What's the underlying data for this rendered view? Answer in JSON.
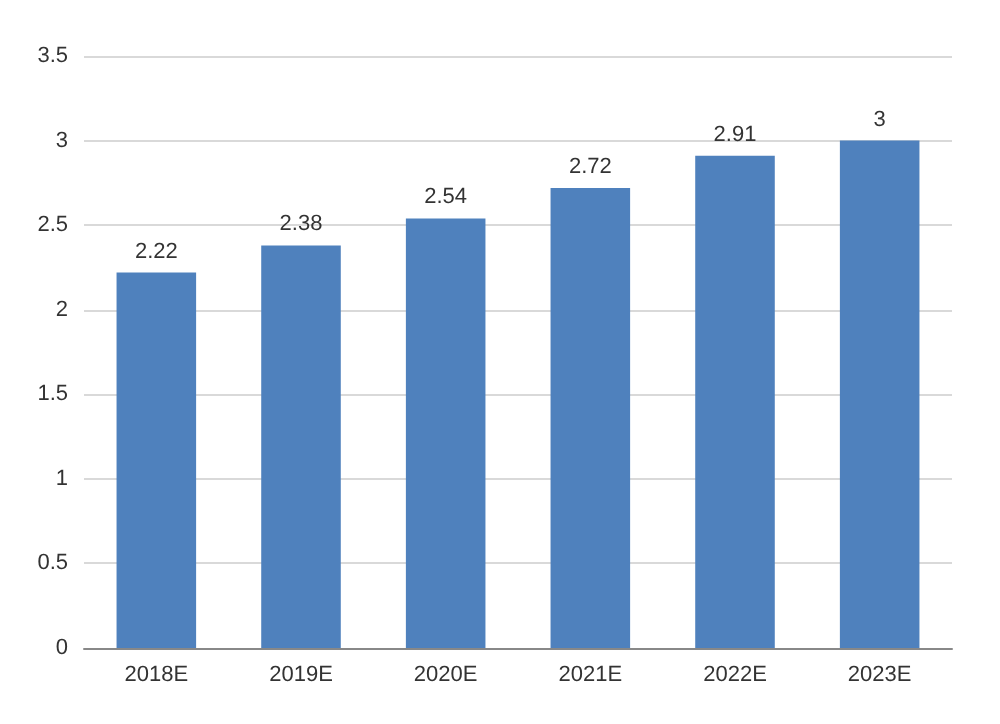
{
  "chart_data": {
    "type": "bar",
    "categories": [
      "2018E",
      "2019E",
      "2020E",
      "2021E",
      "2022E",
      "2023E"
    ],
    "values": [
      2.22,
      2.38,
      2.54,
      2.72,
      2.91,
      3
    ],
    "color": "#4f81bd",
    "ylim": [
      0,
      3.5
    ],
    "yticks": [
      0,
      0.5,
      1,
      1.5,
      2,
      2.5,
      3,
      3.5
    ],
    "grid": "y",
    "data_labels": true
  }
}
